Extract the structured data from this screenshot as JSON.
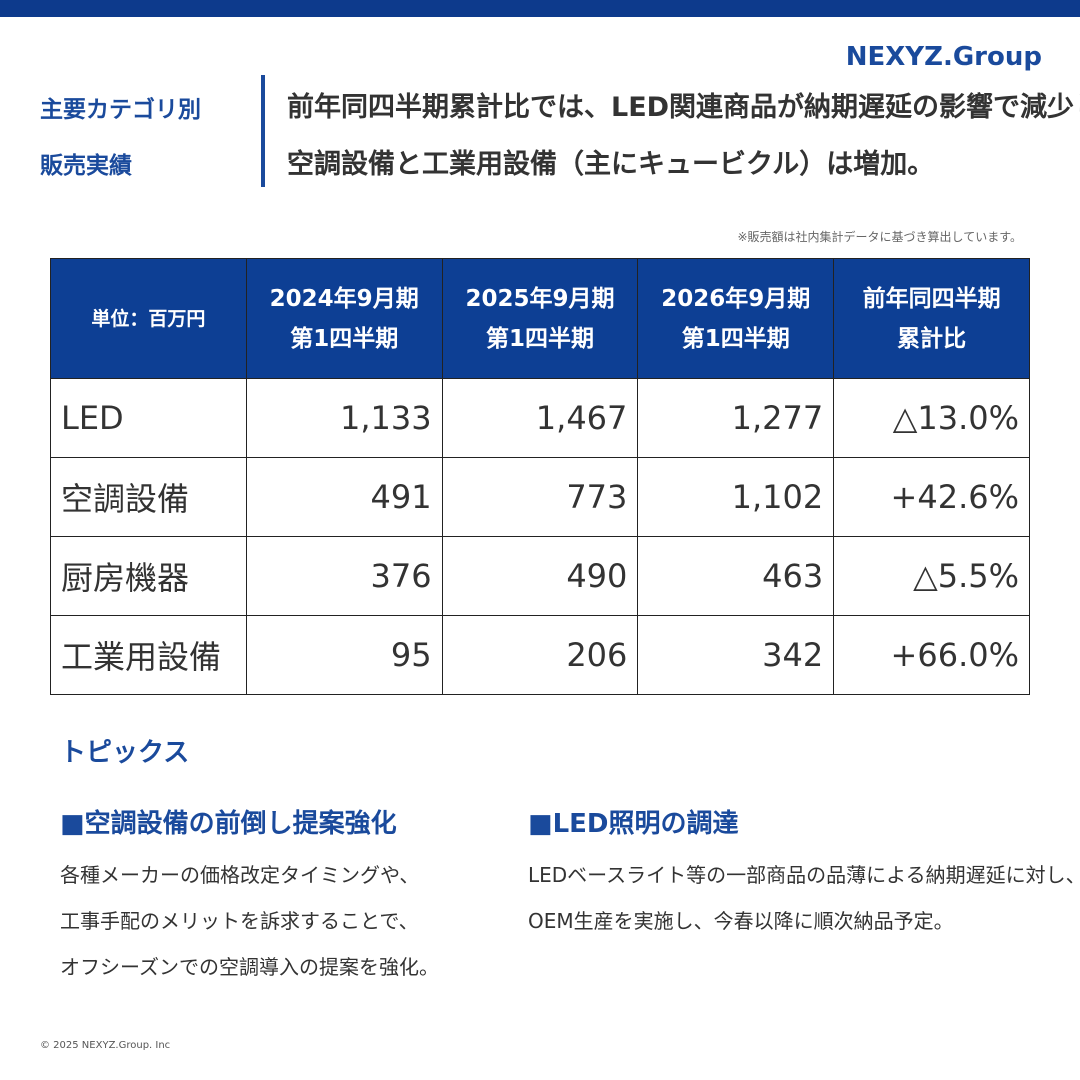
{
  "brand": "NEXYZ.Group",
  "section_label": {
    "lines": [
      "主要カテゴリ別",
      "販売実績"
    ]
  },
  "headline": {
    "lines": [
      "前年同四半期累計比では、LED関連商品が納期遅延の影響で減少した一方、",
      "空調設備と工業用設備（主にキュービクル）は増加。"
    ]
  },
  "note": "※販売額は社内集計データに基づき算出しています。",
  "table": {
    "header": [
      [
        "単位：百万円"
      ],
      [
        "2024年9月期",
        "第1四半期"
      ],
      [
        "2025年9月期",
        "第1四半期"
      ],
      [
        "2026年9月期",
        "第1四半期"
      ],
      [
        "前年同四半期",
        "累計比"
      ]
    ],
    "rows": [
      [
        "LED",
        "1,133",
        "1,467",
        "1,277",
        "△13.0%"
      ],
      [
        "空調設備",
        "491",
        "773",
        "1,102",
        "+42.6%"
      ],
      [
        "厨房機器",
        "376",
        "490",
        "463",
        "△5.5%"
      ],
      [
        "工業用設備",
        "95",
        "206",
        "342",
        "+66.0%"
      ]
    ]
  },
  "topics": {
    "title": "トピックス",
    "items": [
      {
        "title": "■空調設備の前倒し提案強化",
        "lines": [
          "各種メーカーの価格改定タイミングや、",
          "工事手配のメリットを訴求することで、",
          "オフシーズンでの空調導入の提案を強化。"
        ]
      },
      {
        "title": "■LED照明の調達",
        "lines": [
          "LEDベースライト等の一部商品の品薄による納期遅延に対し、",
          "OEM生産を実施し、今春以降に順次納品予定。"
        ]
      }
    ]
  },
  "footer": "© 2025 NEXYZ.Group. Inc"
}
